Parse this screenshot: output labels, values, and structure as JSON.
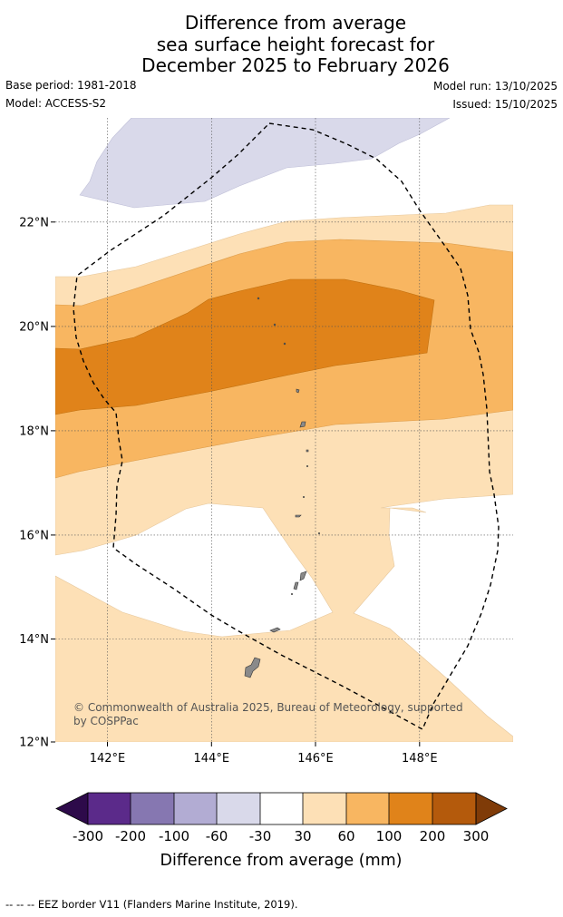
{
  "title": {
    "line1": "Difference from average",
    "line2": "sea surface height forecast for",
    "line3": "December 2025 to February 2026"
  },
  "meta": {
    "base_period": "Base period: 1981-2018",
    "model": "Model: ACCESS-S2",
    "model_run": "Model run: 13/10/2025",
    "issued": "Issued: 15/10/2025"
  },
  "map": {
    "lon_labels": [
      "142°E",
      "144°E",
      "146°E",
      "148°E"
    ],
    "lat_labels": [
      "22°N",
      "20°N",
      "18°N",
      "16°N",
      "14°N",
      "12°N"
    ],
    "lon_range": [
      141,
      149.8
    ],
    "lat_range": [
      12,
      23.95
    ],
    "copyright_line1": "© Commonwealth of Australia 2025, Bureau of Meteorology, supported",
    "copyright_line2": "by COSPPac"
  },
  "colorbar": {
    "labels": [
      "-300",
      "-200",
      "-100",
      "-60",
      "-30",
      "30",
      "60",
      "100",
      "200",
      "300"
    ],
    "colors": [
      "#2d0a4a",
      "#5b2a8a",
      "#8677b1",
      "#b2acd3",
      "#d9d9ea",
      "#ffffff",
      "#fde0b6",
      "#f8b661",
      "#e0831a",
      "#b45a0c",
      "#7f3b08"
    ],
    "title": "Difference from average (mm)"
  },
  "footer": "--  --  -- EEZ border V11 (Flanders Marine Institute, 2019)."
}
